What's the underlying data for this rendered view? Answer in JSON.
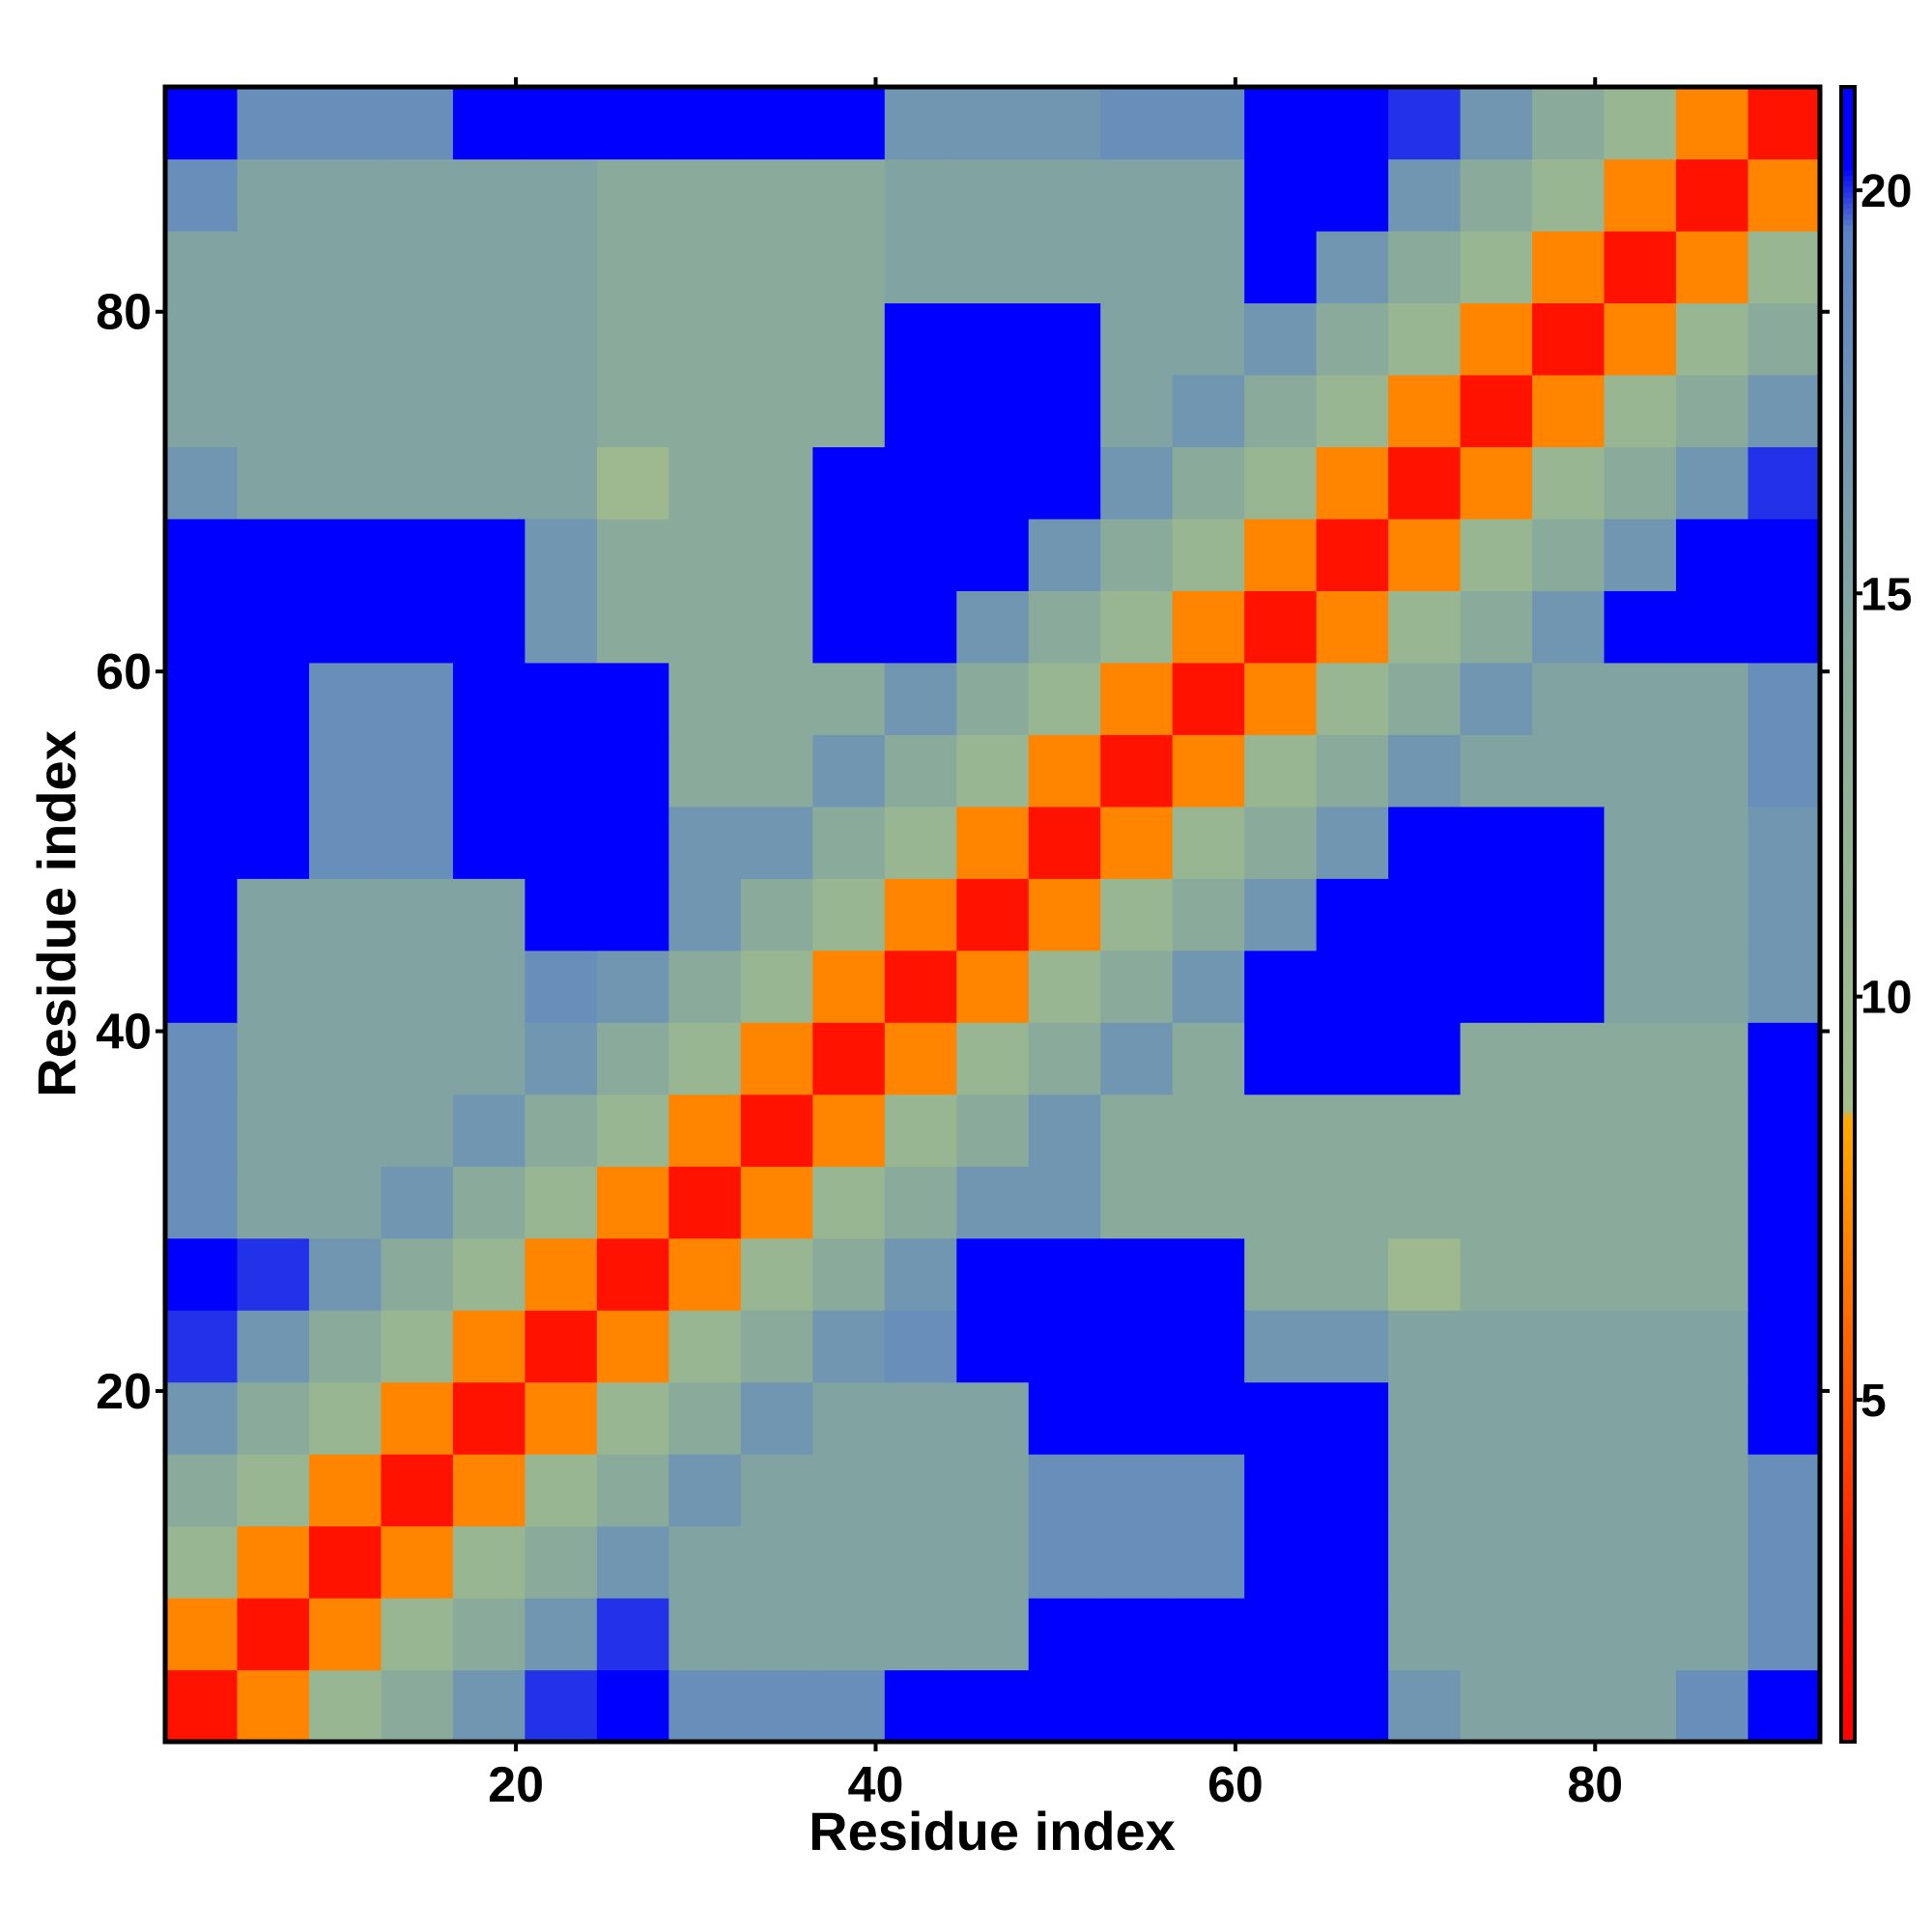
{
  "chart_data": {
    "type": "heatmap",
    "x_label": "Residue index",
    "y_label": "Residue index",
    "x": [
      2.5,
      6.5,
      10.5,
      14.5,
      18.5,
      22.5,
      26.5,
      30.5,
      34.5,
      38.5,
      42.5,
      46.5,
      50.5,
      54.5,
      58.5,
      62.5,
      66.5,
      70.5,
      74.5,
      78.5,
      82.5,
      86.5,
      90.5
    ],
    "y": [
      2.5,
      6.5,
      10.5,
      14.5,
      18.5,
      22.5,
      26.5,
      30.5,
      34.5,
      38.5,
      42.5,
      46.5,
      50.5,
      54.5,
      58.5,
      62.5,
      66.5,
      70.5,
      74.5,
      78.5,
      82.5,
      86.5,
      90.5
    ],
    "values": [
      [
        2,
        7,
        11,
        14,
        17,
        20,
        21,
        18,
        18,
        18,
        21,
        21,
        21,
        21,
        21,
        21,
        21,
        17,
        15,
        15,
        15,
        18,
        21
      ],
      [
        7,
        2,
        7,
        11,
        14,
        17,
        20,
        15,
        15,
        15,
        15,
        15,
        21,
        21,
        21,
        21,
        21,
        15,
        15,
        15,
        15,
        15,
        18
      ],
      [
        11,
        7,
        2,
        7,
        11,
        14,
        17,
        15,
        15,
        15,
        15,
        15,
        18,
        18,
        18,
        21,
        21,
        15,
        15,
        15,
        15,
        15,
        18
      ],
      [
        14,
        11,
        7,
        2,
        7,
        11,
        14,
        17,
        15,
        15,
        15,
        15,
        18,
        18,
        18,
        21,
        21,
        15,
        15,
        15,
        15,
        15,
        18
      ],
      [
        17,
        14,
        11,
        7,
        2,
        7,
        11,
        14,
        17,
        15,
        15,
        15,
        21,
        21,
        21,
        21,
        21,
        15,
        15,
        15,
        15,
        15,
        21
      ],
      [
        20,
        17,
        14,
        11,
        7,
        2,
        7,
        11,
        14,
        17,
        18,
        21,
        21,
        21,
        21,
        17,
        17,
        15,
        15,
        15,
        15,
        15,
        21
      ],
      [
        21,
        20,
        17,
        14,
        11,
        7,
        2,
        7,
        11,
        14,
        17,
        21,
        21,
        21,
        21,
        14,
        14,
        10,
        14,
        14,
        14,
        14,
        21
      ],
      [
        18,
        15,
        15,
        17,
        14,
        11,
        7,
        2,
        7,
        11,
        14,
        17,
        17,
        14,
        14,
        14,
        14,
        14,
        14,
        14,
        14,
        14,
        21
      ],
      [
        18,
        15,
        15,
        15,
        17,
        14,
        11,
        7,
        2,
        7,
        11,
        14,
        17,
        14,
        14,
        14,
        14,
        14,
        14,
        14,
        14,
        14,
        21
      ],
      [
        18,
        15,
        15,
        15,
        15,
        17,
        14,
        11,
        7,
        2,
        7,
        11,
        14,
        17,
        14,
        21,
        21,
        21,
        14,
        14,
        14,
        14,
        21
      ],
      [
        21,
        15,
        15,
        15,
        15,
        18,
        17,
        14,
        11,
        7,
        2,
        7,
        11,
        14,
        17,
        21,
        21,
        21,
        21,
        21,
        15,
        15,
        17
      ],
      [
        21,
        15,
        15,
        15,
        15,
        21,
        21,
        17,
        14,
        11,
        7,
        2,
        7,
        11,
        14,
        17,
        21,
        21,
        21,
        21,
        15,
        15,
        17
      ],
      [
        21,
        21,
        18,
        18,
        21,
        21,
        21,
        17,
        17,
        14,
        11,
        7,
        2,
        7,
        11,
        14,
        17,
        21,
        21,
        21,
        15,
        15,
        17
      ],
      [
        21,
        21,
        18,
        18,
        21,
        21,
        21,
        14,
        14,
        17,
        14,
        11,
        7,
        2,
        7,
        11,
        14,
        17,
        15,
        15,
        15,
        15,
        18
      ],
      [
        21,
        21,
        18,
        18,
        21,
        21,
        21,
        14,
        14,
        14,
        17,
        14,
        11,
        7,
        2,
        7,
        11,
        14,
        17,
        15,
        15,
        15,
        18
      ],
      [
        21,
        21,
        21,
        21,
        21,
        17,
        14,
        14,
        14,
        21,
        21,
        17,
        14,
        11,
        7,
        2,
        7,
        11,
        14,
        17,
        21,
        21,
        21
      ],
      [
        21,
        21,
        21,
        21,
        21,
        17,
        14,
        14,
        14,
        21,
        21,
        21,
        17,
        14,
        11,
        7,
        2,
        7,
        11,
        14,
        17,
        21,
        21
      ],
      [
        17,
        15,
        15,
        15,
        15,
        15,
        10,
        14,
        14,
        21,
        21,
        21,
        21,
        17,
        14,
        11,
        7,
        2,
        7,
        11,
        14,
        17,
        20
      ],
      [
        15,
        15,
        15,
        15,
        15,
        15,
        14,
        14,
        14,
        14,
        21,
        21,
        21,
        15,
        17,
        14,
        11,
        7,
        2,
        7,
        11,
        14,
        17
      ],
      [
        15,
        15,
        15,
        15,
        15,
        15,
        14,
        14,
        14,
        14,
        21,
        21,
        21,
        15,
        15,
        17,
        14,
        11,
        7,
        2,
        7,
        11,
        14
      ],
      [
        15,
        15,
        15,
        15,
        15,
        15,
        14,
        14,
        14,
        14,
        15,
        15,
        15,
        15,
        15,
        21,
        17,
        14,
        11,
        7,
        2,
        7,
        11
      ],
      [
        18,
        15,
        15,
        15,
        15,
        15,
        14,
        14,
        14,
        14,
        15,
        15,
        15,
        15,
        15,
        21,
        21,
        17,
        14,
        11,
        7,
        2,
        7
      ],
      [
        21,
        18,
        18,
        18,
        21,
        21,
        21,
        21,
        21,
        21,
        17,
        17,
        17,
        18,
        18,
        21,
        21,
        20,
        17,
        14,
        11,
        7,
        2
      ]
    ],
    "xlim": [
      0.5,
      92.5
    ],
    "ylim": [
      0.5,
      92.5
    ],
    "xticks": [
      20,
      40,
      60,
      80
    ],
    "yticks": [
      20,
      40,
      60,
      80
    ],
    "clim": [
      0.76,
      21.28
    ],
    "cticks": [
      5,
      10,
      15,
      20
    ],
    "colorscale": [
      [
        0.76,
        "#ff0000"
      ],
      [
        3,
        "#ff2000"
      ],
      [
        8.5,
        "#ffaa00"
      ],
      [
        8.6,
        "#a5be8c"
      ],
      [
        14,
        "#8aab9c"
      ],
      [
        19.5,
        "#5b84c4"
      ],
      [
        20.3,
        "#0000ff"
      ],
      [
        21.28,
        "#0000ff"
      ]
    ],
    "grid": false
  }
}
